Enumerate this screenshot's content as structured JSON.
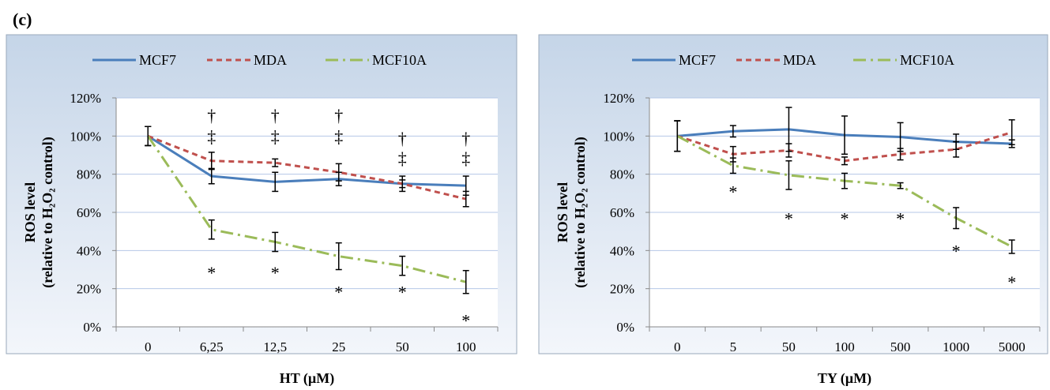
{
  "panel_label": "(c)",
  "colors": {
    "MCF7": "#4a7ebb",
    "MDA": "#c0504d",
    "MCF10A": "#9bbb59",
    "grid": "#b4c7e7",
    "background_top": "#c5d5e8",
    "background_bottom": "#f3f6fb"
  },
  "chart_data": [
    {
      "type": "line",
      "xlabel": "HT (µM)",
      "ylabel": [
        "ROS level",
        "(relative to H₂O₂ control)"
      ],
      "categories": [
        "0",
        "6,25",
        "12,5",
        "25",
        "50",
        "100"
      ],
      "y_tick_labels": [
        "0%",
        "20%",
        "40%",
        "60%",
        "80%",
        "100%",
        "120%"
      ],
      "ylim": [
        0,
        1.2
      ],
      "grid": true,
      "legend": "top",
      "series": [
        {
          "name": "MCF7",
          "values": [
            1.0,
            0.79,
            0.76,
            0.775,
            0.75,
            0.74
          ],
          "errors": [
            0.05,
            0.04,
            0.05,
            0.035,
            0.04,
            0.05
          ]
        },
        {
          "name": "MDA",
          "values": [
            1.0,
            0.87,
            0.86,
            0.81,
            0.75,
            0.67
          ],
          "errors": [
            0.05,
            0.045,
            0.02,
            0.045,
            0.02,
            0.04
          ]
        },
        {
          "name": "MCF10A",
          "values": [
            1.0,
            0.51,
            0.445,
            0.37,
            0.32,
            0.235
          ],
          "errors": [
            0.05,
            0.05,
            0.05,
            0.07,
            0.05,
            0.06
          ]
        }
      ],
      "annotations": [
        {
          "category": "6,25",
          "text": "†",
          "y": 1.11
        },
        {
          "category": "6,25",
          "text": "‡",
          "y": 1.0
        },
        {
          "category": "6,25",
          "text": "*",
          "y": 0.285
        },
        {
          "category": "12,5",
          "text": "†",
          "y": 1.11
        },
        {
          "category": "12,5",
          "text": "‡",
          "y": 1.0
        },
        {
          "category": "12,5",
          "text": "*",
          "y": 0.285
        },
        {
          "category": "25",
          "text": "†",
          "y": 1.11
        },
        {
          "category": "25",
          "text": "‡",
          "y": 1.0
        },
        {
          "category": "25",
          "text": "*",
          "y": 0.185
        },
        {
          "category": "50",
          "text": "†",
          "y": 0.99
        },
        {
          "category": "50",
          "text": "‡",
          "y": 0.885
        },
        {
          "category": "50",
          "text": "*",
          "y": 0.185
        },
        {
          "category": "100",
          "text": "†",
          "y": 0.99
        },
        {
          "category": "100",
          "text": "‡",
          "y": 0.885
        },
        {
          "category": "100",
          "text": "*",
          "y": 0.035
        }
      ]
    },
    {
      "type": "line",
      "xlabel": "TY (µM)",
      "ylabel": [
        "ROS level",
        "(relative to H₂O₂ control)"
      ],
      "categories": [
        "0",
        "5",
        "50",
        "100",
        "500",
        "1000",
        "5000"
      ],
      "y_tick_labels": [
        "0%",
        "20%",
        "40%",
        "60%",
        "80%",
        "100%",
        "120%"
      ],
      "ylim": [
        0,
        1.2
      ],
      "grid": true,
      "legend": "top",
      "series": [
        {
          "name": "MCF7",
          "values": [
            1.0,
            1.025,
            1.035,
            1.005,
            0.995,
            0.97,
            0.96
          ],
          "errors": [
            0.08,
            0.03,
            0.115,
            0.1,
            0.075,
            0.04,
            0.02
          ]
        },
        {
          "name": "MDA",
          "values": [
            1.0,
            0.905,
            0.925,
            0.87,
            0.905,
            0.93,
            1.02
          ],
          "errors": [
            0.08,
            0.04,
            0.035,
            0.02,
            0.03,
            0.04,
            0.065
          ]
        },
        {
          "name": "MCF10A",
          "values": [
            1.0,
            0.845,
            0.795,
            0.765,
            0.74,
            0.57,
            0.42
          ],
          "errors": [
            0.08,
            0.04,
            0.075,
            0.04,
            0.015,
            0.055,
            0.035
          ]
        }
      ],
      "annotations": [
        {
          "category": "5",
          "text": "*",
          "y": 0.71
        },
        {
          "category": "50",
          "text": "*",
          "y": 0.57
        },
        {
          "category": "100",
          "text": "*",
          "y": 0.57
        },
        {
          "category": "500",
          "text": "*",
          "y": 0.57
        },
        {
          "category": "1000",
          "text": "*",
          "y": 0.4
        },
        {
          "category": "5000",
          "text": "*",
          "y": 0.235
        }
      ]
    }
  ]
}
